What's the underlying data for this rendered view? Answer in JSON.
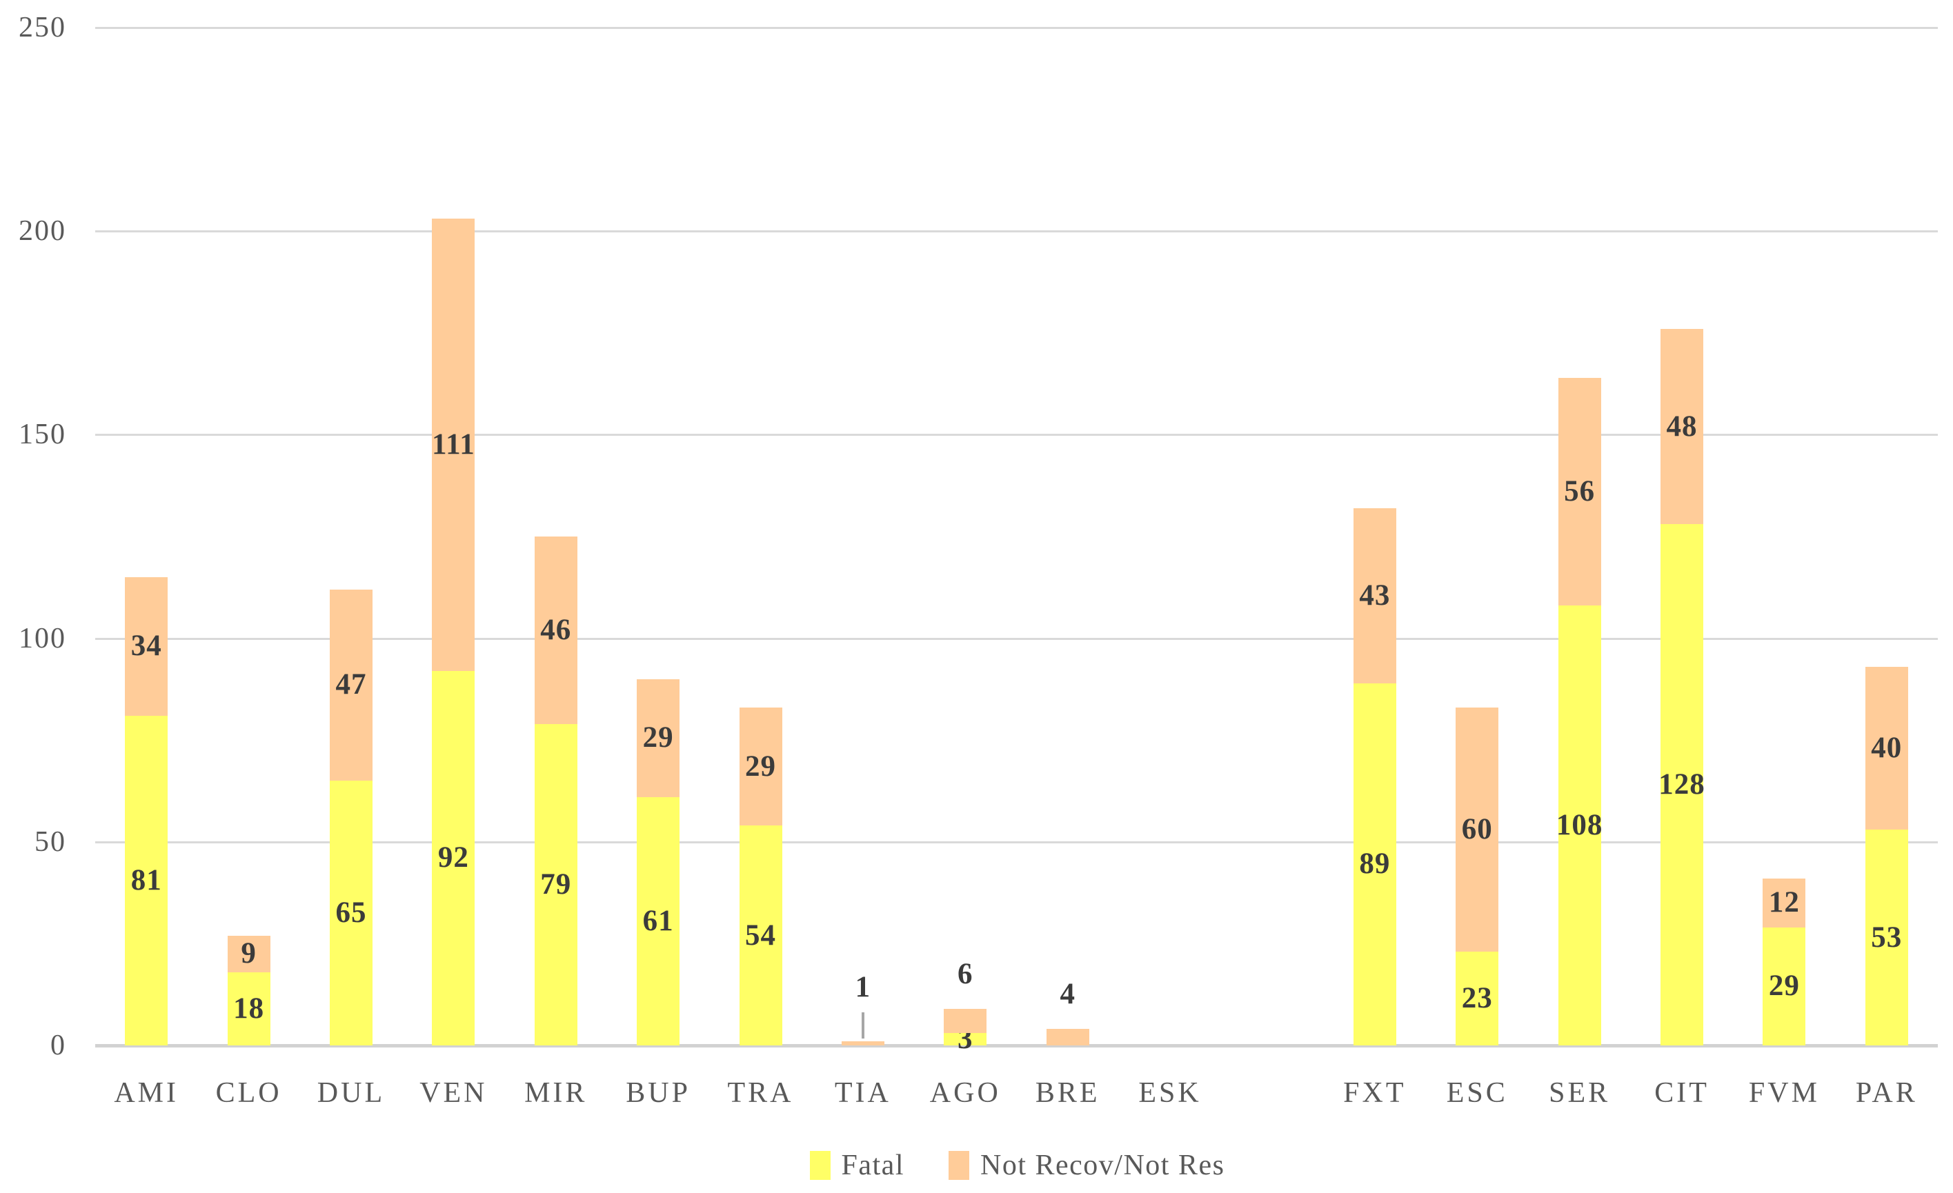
{
  "chart_data": {
    "type": "bar",
    "stacked": true,
    "title": "",
    "xlabel": "",
    "ylabel": "",
    "categories": [
      "AMI",
      "CLO",
      "DUL",
      "VEN",
      "MIR",
      "BUP",
      "TRA",
      "TIA",
      "AGO",
      "BRE",
      "ESK",
      "",
      "FXT",
      "ESC",
      "SER",
      "CIT",
      "FVM",
      "PAR"
    ],
    "series": [
      {
        "name": "Fatal",
        "color": "#FFFF66",
        "values": [
          81,
          18,
          65,
          92,
          79,
          61,
          54,
          0,
          3,
          0,
          0,
          0,
          89,
          23,
          108,
          128,
          29,
          53
        ]
      },
      {
        "name": "Not Recov/Not Res",
        "color": "#FFCC99",
        "values": [
          34,
          9,
          47,
          111,
          46,
          29,
          29,
          1,
          6,
          4,
          0,
          0,
          43,
          60,
          56,
          48,
          12,
          40
        ]
      }
    ],
    "ylim": [
      0,
      250
    ],
    "yticks": [
      0,
      50,
      100,
      150,
      200,
      250
    ],
    "grid": "horizontal",
    "legend_position": "bottom-center",
    "data_labels": "on-segments",
    "colors": {
      "background": "#FFFFFF",
      "gridline": "#D9D9D9",
      "axis_line": "#D2D2D2",
      "data_label": "#3B3B3B",
      "axis_label": "#595959",
      "leader_line": "#A6A6A6"
    }
  }
}
